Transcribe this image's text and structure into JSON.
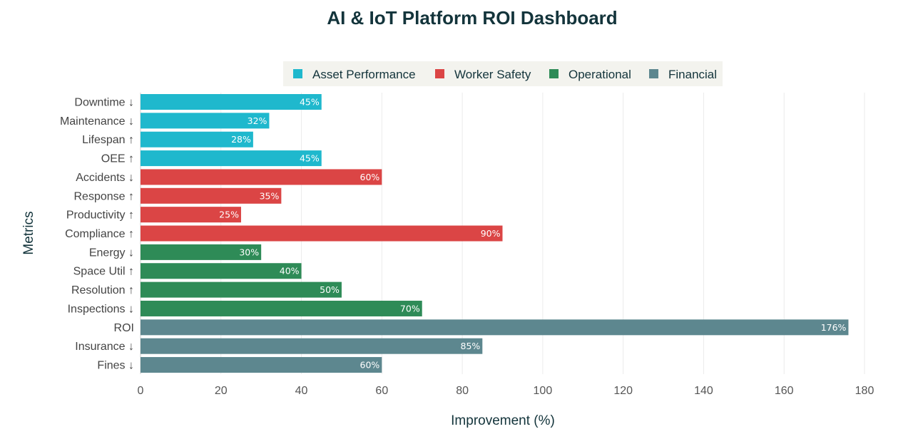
{
  "chart_data": {
    "type": "bar",
    "orientation": "horizontal",
    "title": "AI & IoT Platform ROI Dashboard",
    "xlabel": "Improvement (%)",
    "ylabel": "Metrics",
    "xlim": [
      0,
      180
    ],
    "xticks": [
      0,
      20,
      40,
      60,
      80,
      100,
      120,
      140,
      160,
      180
    ],
    "grid": "vertical",
    "legend_placement": "top",
    "legend": [
      {
        "name": "Asset Performance",
        "color": "#1FB8CD"
      },
      {
        "name": "Worker Safety",
        "color": "#DB4545"
      },
      {
        "name": "Operational",
        "color": "#2E8B57"
      },
      {
        "name": "Financial",
        "color": "#5D878F"
      }
    ],
    "bars": [
      {
        "category": "Downtime ↓",
        "value": 45,
        "label": "45%",
        "group": 0
      },
      {
        "category": "Maintenance ↓",
        "value": 32,
        "label": "32%",
        "group": 0
      },
      {
        "category": "Lifespan ↑",
        "value": 28,
        "label": "28%",
        "group": 0
      },
      {
        "category": "OEE ↑",
        "value": 45,
        "label": "45%",
        "group": 0
      },
      {
        "category": "Accidents ↓",
        "value": 60,
        "label": "60%",
        "group": 1
      },
      {
        "category": "Response ↑",
        "value": 35,
        "label": "35%",
        "group": 1
      },
      {
        "category": "Productivity ↑",
        "value": 25,
        "label": "25%",
        "group": 1
      },
      {
        "category": "Compliance ↑",
        "value": 90,
        "label": "90%",
        "group": 1
      },
      {
        "category": "Energy ↓",
        "value": 30,
        "label": "30%",
        "group": 2
      },
      {
        "category": "Space Util ↑",
        "value": 40,
        "label": "40%",
        "group": 2
      },
      {
        "category": "Resolution ↑",
        "value": 50,
        "label": "50%",
        "group": 2
      },
      {
        "category": "Inspections ↓",
        "value": 70,
        "label": "70%",
        "group": 2
      },
      {
        "category": "ROI",
        "value": 176,
        "label": "176%",
        "group": 3
      },
      {
        "category": "Insurance ↓",
        "value": 85,
        "label": "85%",
        "group": 3
      },
      {
        "category": "Fines ↓",
        "value": 60,
        "label": "60%",
        "group": 3
      }
    ]
  }
}
